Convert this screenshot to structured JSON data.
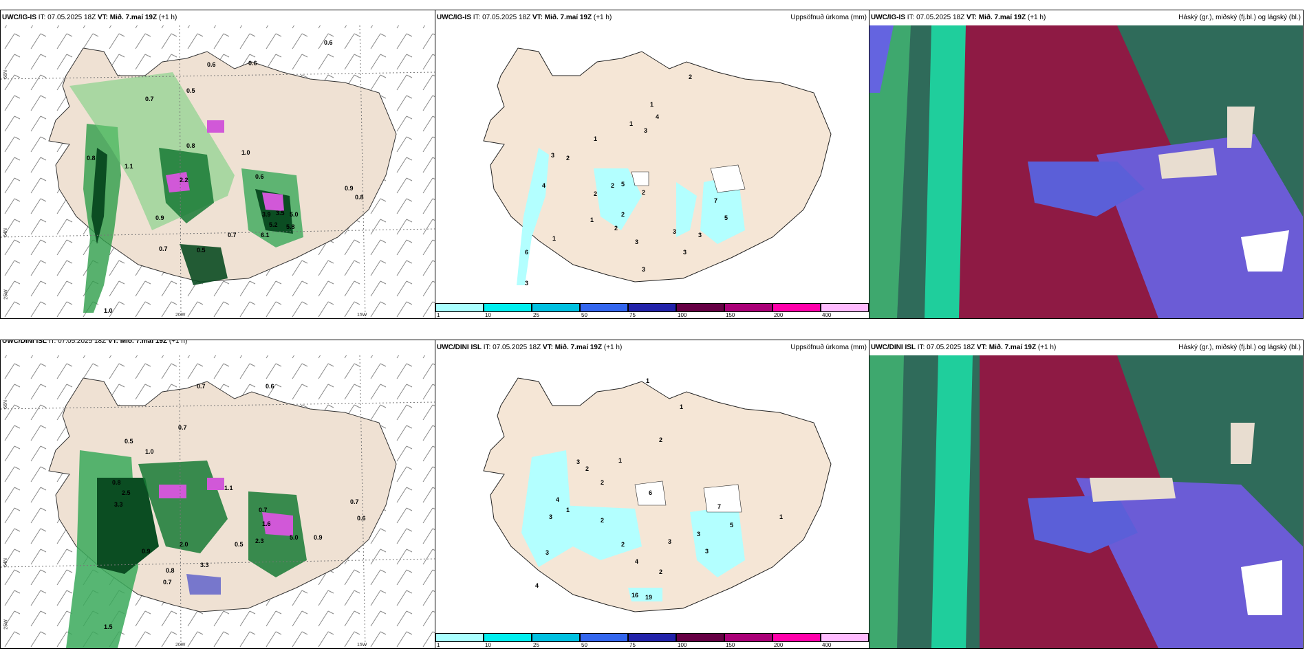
{
  "rows": [
    {
      "model": "UWC/IG-IS",
      "it_label": "IT:",
      "it_value": "07.05.2025 18Z",
      "vt_label": "VT:",
      "vt_value": "Mið. 7.maí 19Z",
      "lead": "(+1 h)"
    },
    {
      "model": "UWC/DINI ISL",
      "it_label": "IT:",
      "it_value": "07.05.2025 18Z",
      "vt_label": "VT:",
      "vt_value": "Mið. 7.maí 19Z",
      "lead": "(+1 h)"
    }
  ],
  "precip_title": "Uppsöfnuð úrkoma (mm)",
  "cloud_title": "Háský (gr.), miðský (fj.bl.) og lágský (bl.)",
  "colorbar": {
    "ticks": [
      "1",
      "10",
      "25",
      "50",
      "75",
      "100",
      "150",
      "200",
      "400"
    ],
    "colors": [
      "#aaffff",
      "#00eeee",
      "#00c0e0",
      "#3366ee",
      "#2222aa",
      "#660044",
      "#aa0077",
      "#ff00aa",
      "#ffbbff"
    ]
  },
  "coords": {
    "lat66": "66N",
    "lat64": "64N",
    "lon25": "25W",
    "lon20": "20W",
    "lon15": "15W"
  },
  "wind_labels_top": [
    "0.6",
    "0.6",
    "0.6",
    "0.7",
    "0.5",
    "0.8",
    "1.0",
    "0.8",
    "1.1",
    "0.6",
    "2.2",
    "3.9",
    "3.5",
    "5.2",
    "6.1",
    "5.0",
    "5.8",
    "0.7",
    "0.9",
    "0.8",
    "1.0",
    "0.7",
    "0.5",
    "0.9"
  ],
  "wind_labels_bottom": [
    "0.7",
    "0.6",
    "0.5",
    "1.0",
    "0.7",
    "0.8",
    "2.5",
    "3.3",
    "0.9",
    "1.1",
    "0.7",
    "1.6",
    "2.3",
    "5.0",
    "0.9",
    "0.7",
    "0.6",
    "0.8",
    "2.0",
    "0.7",
    "1.5",
    "3.3",
    "0.5"
  ],
  "precip_labels_top": [
    "2",
    "1",
    "4",
    "3",
    "1",
    "1",
    "3",
    "2",
    "4",
    "2",
    "2",
    "5",
    "2",
    "2",
    "1",
    "2",
    "7",
    "5",
    "3",
    "3",
    "3",
    "1",
    "6",
    "3",
    "3",
    "3"
  ],
  "precip_labels_bottom": [
    "1",
    "1",
    "2",
    "3",
    "2",
    "6",
    "1",
    "2",
    "7",
    "5",
    "3",
    "3",
    "2",
    "4",
    "3",
    "1",
    "4",
    "3",
    "1",
    "16",
    "19",
    "2",
    "2",
    "4",
    "3"
  ]
}
